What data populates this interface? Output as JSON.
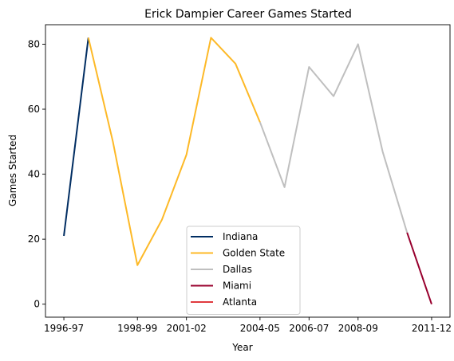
{
  "chart_data": {
    "type": "line",
    "title": "Erick Dampier Career Games Started",
    "xlabel": "Year",
    "ylabel": "Games Started",
    "x_tick_labels": [
      "1996-97",
      "1998-99",
      "2001-02",
      "2004-05",
      "2006-07",
      "2008-09",
      "2011-12"
    ],
    "x_tick_index": [
      0,
      3,
      5,
      8,
      10,
      12,
      15
    ],
    "y_ticks": [
      0,
      20,
      40,
      60,
      80
    ],
    "ylim": [
      -4,
      86
    ],
    "xlim": [
      -0.75,
      15.75
    ],
    "legend_position": "lower-center",
    "grid": false,
    "series": [
      {
        "name": "Indiana",
        "color": "#002D62",
        "x": [
          0,
          1
        ],
        "y": [
          21,
          82
        ]
      },
      {
        "name": "Golden State",
        "color": "#FDB927",
        "x": [
          1,
          2,
          3,
          4,
          5,
          6,
          7,
          8
        ],
        "y": [
          82,
          50,
          12,
          26,
          46,
          82,
          74,
          56
        ]
      },
      {
        "name": "Dallas",
        "color": "#BFBFBF",
        "x": [
          8,
          9,
          10,
          11,
          12,
          13,
          14
        ],
        "y": [
          56,
          36,
          73,
          64,
          80,
          47,
          22
        ]
      },
      {
        "name": "Miami",
        "color": "#98002E",
        "x": [
          14,
          15
        ],
        "y": [
          22,
          0
        ]
      },
      {
        "name": "Atlanta",
        "color": "#E03A3E",
        "x": [],
        "y": []
      }
    ]
  }
}
